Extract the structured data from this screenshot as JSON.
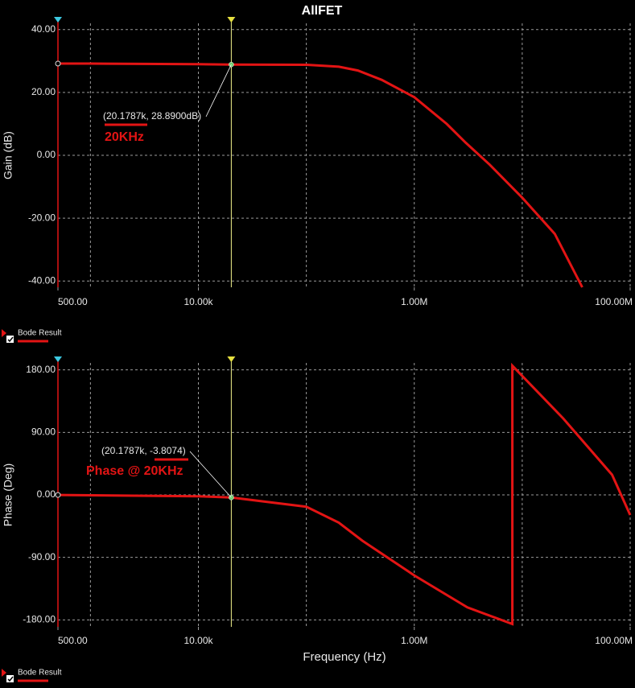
{
  "chart_data": [
    {
      "type": "line",
      "title": "AllFET",
      "ylabel": "Gain (dB)",
      "xscale": "log",
      "xlim": [
        500,
        100000000
      ],
      "xticks": [
        {
          "value": 500,
          "label": "500.00"
        },
        {
          "value": 10000,
          "label": "10.00k"
        },
        {
          "value": 1000000,
          "label": "1.00M"
        },
        {
          "value": 100000000,
          "label": "100.00M"
        }
      ],
      "xgrid": [
        1000,
        10000,
        100000,
        1000000,
        10000000
      ],
      "ylim": [
        -42,
        42
      ],
      "yticks": [
        {
          "value": 40,
          "label": "40.00"
        },
        {
          "value": 20,
          "label": "20.00"
        },
        {
          "value": 0,
          "label": "0.00"
        },
        {
          "value": -20,
          "label": "-20.00"
        },
        {
          "value": -40,
          "label": "-40.00"
        }
      ],
      "grid": true,
      "x": [
        500,
        1000,
        10000,
        20178.7,
        100000,
        200000,
        300000,
        500000,
        1000000,
        2000000,
        3000000,
        5000000,
        10000000,
        20000000,
        36000000
      ],
      "series": [
        {
          "name": "Bode Result",
          "color": "#e31414",
          "values": [
            29.2,
            29.2,
            29.0,
            28.89,
            28.8,
            28.2,
            27,
            24,
            18.5,
            10,
            4,
            -3,
            -13.5,
            -25,
            -42
          ]
        }
      ],
      "cursor": {
        "x": 20178.7,
        "y": 28.89,
        "label": "(20.1787k, 28.8900dB)"
      },
      "annotation": "20KHz"
    },
    {
      "type": "line",
      "xlabel": "Frequency (Hz)",
      "ylabel": "Phase (Deg)",
      "xscale": "log",
      "xlim": [
        500,
        100000000
      ],
      "xticks": [
        {
          "value": 500,
          "label": "500.00"
        },
        {
          "value": 10000,
          "label": "10.00k"
        },
        {
          "value": 1000000,
          "label": "1.00M"
        },
        {
          "value": 100000000,
          "label": "100.00M"
        }
      ],
      "xgrid": [
        1000,
        10000,
        100000,
        1000000,
        10000000
      ],
      "ylim": [
        -190,
        190
      ],
      "yticks": [
        {
          "value": 180,
          "label": "180.00"
        },
        {
          "value": 90,
          "label": "90.00"
        },
        {
          "value": 0,
          "label": "0.00"
        },
        {
          "value": -90,
          "label": "-90.00"
        },
        {
          "value": -180,
          "label": "-180.00"
        }
      ],
      "grid": true,
      "x": [
        500,
        10000,
        20178.7,
        100000,
        200000,
        331000,
        1000000,
        3100000,
        8100000,
        8100000,
        24000000,
        68000000,
        100000000
      ],
      "series": [
        {
          "name": "Bode Result",
          "color": "#e31414",
          "values": [
            -0.1,
            -2,
            -3.8074,
            -17,
            -40,
            -66,
            -116,
            -162,
            -186,
            186,
            110,
            29,
            -29
          ]
        }
      ],
      "cursor": {
        "x": 20178.7,
        "y": -3.8074,
        "label": "(20.1787k, -3.8074)"
      },
      "annotation": "Phase @ 20KHz"
    }
  ]
}
